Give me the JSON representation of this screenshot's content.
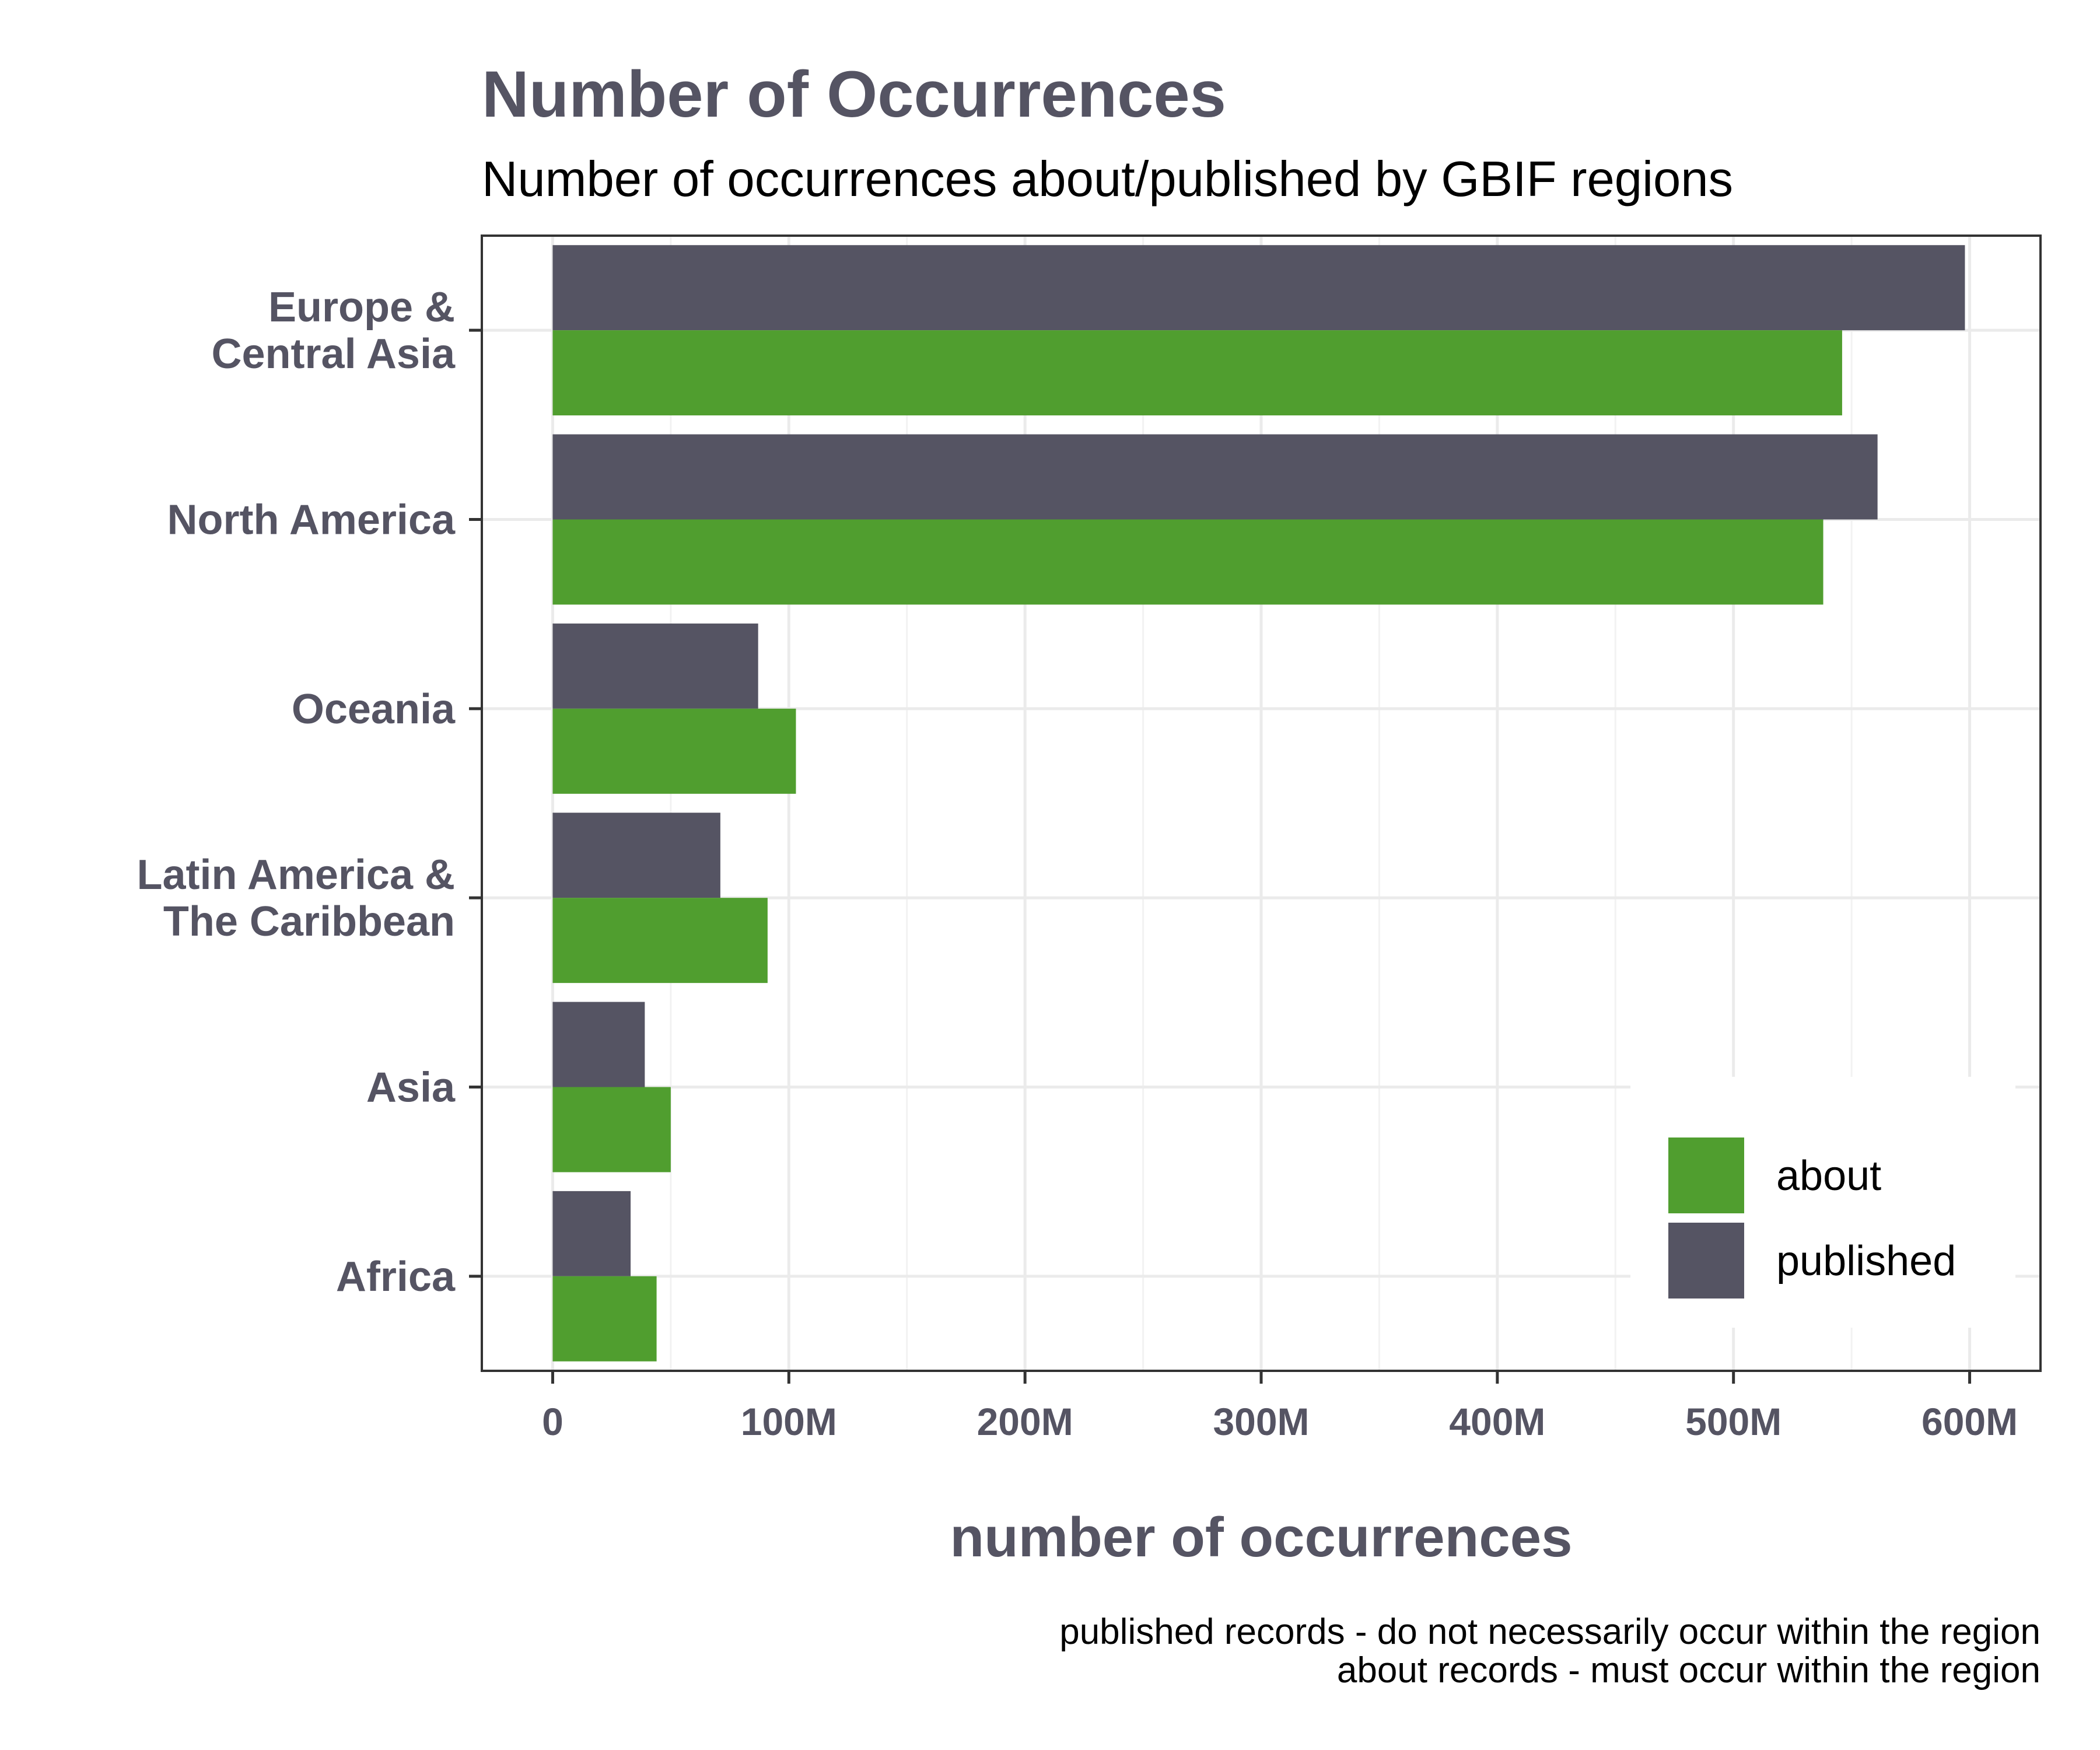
{
  "chart_data": {
    "type": "bar",
    "orientation": "horizontal",
    "title": "Number of Occurrences",
    "subtitle": "Number of occurrences about/published by GBIF regions",
    "xlabel": "number of occurrences",
    "ylabel": "",
    "categories": [
      "Europe &\nCentral Asia",
      "North America",
      "Oceania",
      "Latin America &\nThe Caribbean",
      "Asia",
      "Africa"
    ],
    "series": [
      {
        "name": "published",
        "color": "#555463",
        "values": [
          598000000,
          561000000,
          87000000,
          71000000,
          39000000,
          33000000
        ]
      },
      {
        "name": "about",
        "color": "#509e2f",
        "values": [
          546000000,
          538000000,
          103000000,
          91000000,
          50000000,
          44000000
        ]
      }
    ],
    "xlim": [
      -30000000,
      630000000
    ],
    "xticks": [
      0,
      100000000,
      200000000,
      300000000,
      400000000,
      500000000,
      600000000
    ],
    "xtick_labels": [
      "0",
      "100M",
      "200M",
      "300M",
      "400M",
      "500M",
      "600M"
    ],
    "grid": true,
    "legend": {
      "placement": "bottom-right",
      "entries": [
        "about",
        "published"
      ]
    },
    "caption": [
      "published records - do not necessarily occur within the region",
      "about records - must occur within the region"
    ]
  }
}
